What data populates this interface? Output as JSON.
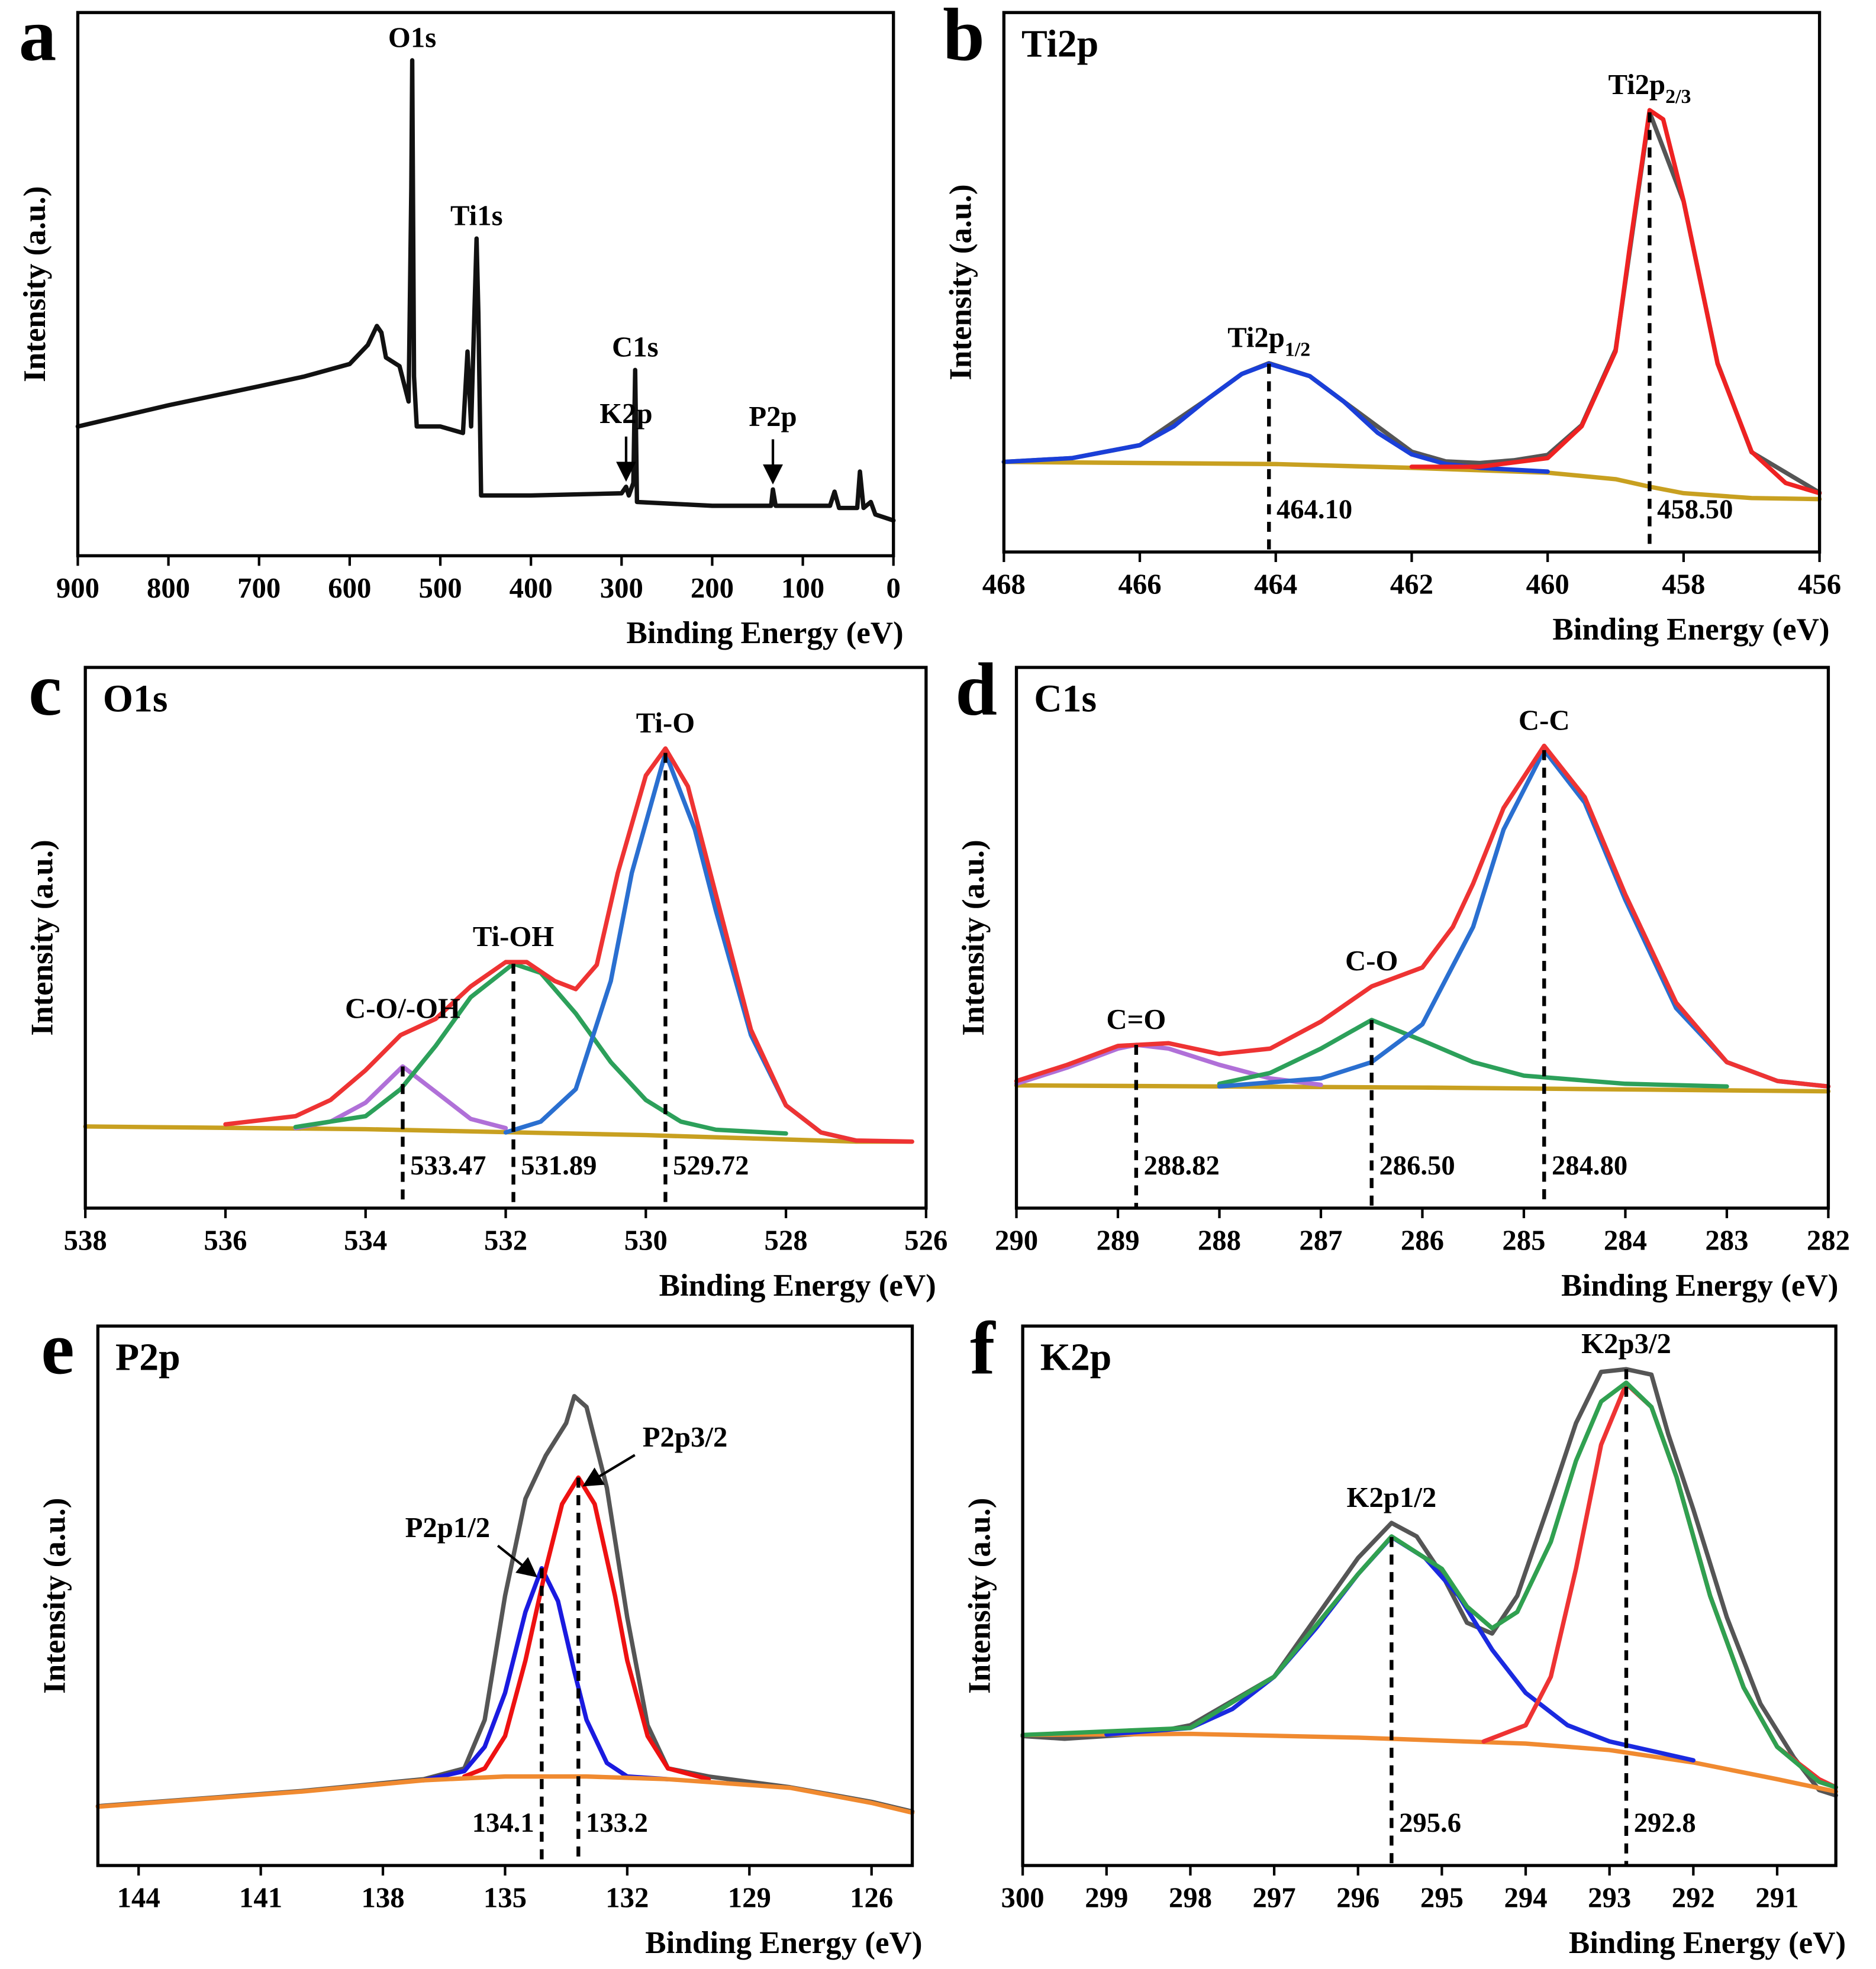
{
  "chart_data": [
    {
      "type": "line",
      "panel": "a",
      "x_label": "Binding Energy (eV)",
      "y_label": "Intensity (a.u.)",
      "xlim": [
        900,
        0
      ],
      "xticks": [
        900,
        800,
        700,
        600,
        500,
        400,
        300,
        200,
        100,
        0
      ],
      "ylim": [
        0,
        100
      ],
      "series": [
        {
          "color": "#111111",
          "x": [
            900,
            800,
            700,
            650,
            600,
            580,
            570,
            565,
            560,
            545,
            535,
            532,
            531,
            529,
            526,
            500,
            475,
            470,
            466,
            462,
            460,
            458,
            455,
            400,
            300,
            295,
            292,
            287,
            285,
            283,
            200,
            135,
            133,
            130,
            70,
            65,
            60,
            40,
            37,
            33,
            25,
            20,
            0
          ],
          "values": [
            23.8,
            27.7,
            31.2,
            33,
            35.3,
            38.8,
            42.3,
            41.1,
            36.5,
            34.9,
            28.4,
            67.7,
            91.2,
            33,
            23.8,
            23.8,
            22.6,
            37.6,
            23.8,
            46.9,
            58.4,
            44.6,
            11.1,
            11.1,
            11.5,
            12.7,
            11.1,
            13.4,
            34.2,
            9.9,
            9.2,
            9.2,
            12.2,
            9.2,
            9.2,
            11.8,
            8.8,
            8.8,
            15.5,
            8.8,
            9.9,
            7.6,
            6.5
          ]
        }
      ],
      "annotations": [
        {
          "text": "O1s",
          "x": 531
        },
        {
          "text": "Ti1s",
          "x": 460
        },
        {
          "text": "K2p",
          "x": 295,
          "arrow": true
        },
        {
          "text": "C1s",
          "x": 285
        },
        {
          "text": "P2p",
          "x": 133,
          "arrow": true
        }
      ]
    },
    {
      "type": "line",
      "panel": "b",
      "title": "Ti2p",
      "x_label": "Binding Energy (eV)",
      "y_label": "Intensity (a.u.)",
      "xlim": [
        468,
        456
      ],
      "xticks": [
        468,
        466,
        464,
        462,
        460,
        458,
        456
      ],
      "ylim": [
        0,
        100
      ],
      "series": [
        {
          "color": "#555555",
          "x": [
            468,
            467,
            466,
            465,
            464.5,
            464.1,
            463.5,
            463,
            462,
            461.5,
            461,
            460.5,
            460,
            459.5,
            459,
            458.5,
            458,
            457.5,
            457,
            456
          ],
          "values": [
            16.7,
            17.4,
            19.8,
            28.4,
            33,
            35,
            32.6,
            27.9,
            18.6,
            16.8,
            16.5,
            17,
            18,
            23.5,
            37.5,
            81.5,
            65,
            35,
            18.5,
            11
          ]
        },
        {
          "color": "#c8a020",
          "x": [
            468,
            464,
            462,
            460,
            459,
            458.5,
            458,
            457,
            456
          ],
          "values": [
            16.7,
            16.3,
            15.6,
            14.7,
            13.5,
            12.1,
            10.9,
            10,
            9.8
          ]
        },
        {
          "color": "#1a3fd8",
          "x": [
            468,
            467,
            466,
            465.5,
            465,
            464.5,
            464.1,
            463.5,
            463,
            462.5,
            462,
            461.5,
            461,
            460
          ],
          "values": [
            16.7,
            17.4,
            19.8,
            23.3,
            28.4,
            33,
            34.9,
            32.6,
            27.9,
            22.1,
            18.1,
            16.3,
            15.6,
            14.9
          ]
        },
        {
          "color": "#ee2222",
          "x": [
            462,
            461,
            460,
            459.5,
            459,
            458.8,
            458.5,
            458.3,
            458,
            457.5,
            457,
            456.5,
            456
          ],
          "values": [
            15.8,
            15.8,
            17.4,
            23.3,
            37.2,
            55.8,
            81.9,
            80.2,
            65.1,
            34.9,
            18.6,
            12.8,
            10.9
          ]
        }
      ],
      "peaks": [
        {
          "name": "Ti2p",
          "sub": "1/2",
          "value": 464.1,
          "value_label": "464.10"
        },
        {
          "name": "Ti2p",
          "sub": "2/3",
          "value": 458.5,
          "value_label": "458.50"
        }
      ]
    },
    {
      "type": "line",
      "panel": "c",
      "title": "O1s",
      "x_label": "Binding Energy (eV)",
      "y_label": "Intensity (a.u.)",
      "xlim": [
        538,
        526
      ],
      "xticks": [
        538,
        536,
        534,
        532,
        530,
        528,
        526
      ],
      "ylim": [
        0,
        100
      ],
      "series": [
        {
          "color": "#c8a020",
          "x": [
            538,
            534,
            530,
            527,
            526.2
          ],
          "values": [
            15.1,
            14.6,
            13.5,
            12.3,
            12.3
          ]
        },
        {
          "color": "#b070d8",
          "x": [
            535,
            534.5,
            534,
            533.47,
            533,
            532.5,
            532
          ],
          "values": [
            14.8,
            16,
            19.5,
            26.2,
            21.5,
            16.5,
            14.8
          ]
        },
        {
          "color": "#2ca05a",
          "x": [
            535,
            534,
            533.5,
            533,
            532.5,
            531.89,
            531.5,
            531,
            530.5,
            530,
            529.5,
            529,
            528
          ],
          "values": [
            15,
            17,
            22,
            30,
            39,
            45.2,
            43.5,
            36,
            27,
            20,
            16,
            14.5,
            13.8
          ]
        },
        {
          "color": "#2a6fd0",
          "x": [
            532,
            531.5,
            531,
            530.5,
            530.2,
            529.72,
            529.3,
            529,
            528.5,
            528,
            527.5,
            527
          ],
          "values": [
            14,
            16,
            22,
            42,
            62,
            84.2,
            70,
            55,
            32,
            19,
            14,
            12.5
          ]
        },
        {
          "color": "#ee3333",
          "x": [
            536,
            535,
            534.5,
            534,
            533.5,
            533,
            532.5,
            532,
            531.7,
            531.3,
            531,
            530.7,
            530.4,
            530,
            529.72,
            529.4,
            529,
            528.5,
            528,
            527.5,
            527,
            526.2
          ],
          "values": [
            15.5,
            17,
            20,
            25.5,
            32,
            35,
            41,
            45.5,
            45.5,
            42,
            40.5,
            45,
            62,
            80,
            85,
            78,
            58,
            33,
            19,
            14,
            12.5,
            12.3
          ]
        }
      ],
      "peaks": [
        {
          "name": "C-O/-OH",
          "value": 533.47
        },
        {
          "name": "Ti-OH",
          "value": 531.89
        },
        {
          "name": "Ti-O",
          "value": 529.72
        }
      ]
    },
    {
      "type": "line",
      "panel": "d",
      "title": "C1s",
      "x_label": "Binding Energy (eV)",
      "y_label": "Intensity (a.u.)",
      "xlim": [
        290,
        282
      ],
      "xticks": [
        290,
        289,
        288,
        287,
        286,
        285,
        284,
        283,
        282
      ],
      "ylim": [
        0,
        100
      ],
      "series": [
        {
          "color": "#c8a020",
          "x": [
            290,
            286,
            282
          ],
          "values": [
            22.7,
            22.3,
            21.6
          ]
        },
        {
          "color": "#b070d8",
          "x": [
            290,
            289.5,
            289,
            288.82,
            288.5,
            288,
            287.5,
            287
          ],
          "values": [
            23,
            26,
            29.5,
            30.2,
            29.5,
            26.5,
            24,
            22.8
          ]
        },
        {
          "color": "#2ca05a",
          "x": [
            288,
            287.5,
            287,
            286.5,
            286,
            285.5,
            285,
            284,
            283
          ],
          "values": [
            23,
            25,
            29.5,
            34.8,
            31,
            27,
            24.5,
            23,
            22.5
          ]
        },
        {
          "color": "#2a6fd0",
          "x": [
            288,
            287,
            286.5,
            286,
            285.5,
            285.2,
            284.8,
            284.4,
            284,
            283.5,
            283,
            282.5,
            282
          ],
          "values": [
            22.5,
            24,
            27,
            34,
            52,
            70,
            84.7,
            75,
            57,
            37,
            27,
            23.5,
            22.5
          ]
        },
        {
          "color": "#ee3333",
          "x": [
            290,
            289.5,
            289,
            288.5,
            288,
            287.5,
            287,
            286.5,
            286,
            285.7,
            285.5,
            285.2,
            284.8,
            284.4,
            284,
            283.5,
            283,
            282.5,
            282
          ],
          "values": [
            23.5,
            26.5,
            30,
            30.5,
            28.5,
            29.5,
            34.5,
            41,
            44.5,
            52,
            60,
            74,
            85.5,
            76,
            58,
            38,
            27,
            23.5,
            22.5
          ]
        }
      ],
      "peaks": [
        {
          "name": "C=O",
          "value": 288.82
        },
        {
          "name": "C-O",
          "value": 286.5,
          "value_label": "286.50"
        },
        {
          "name": "C-C",
          "value": 284.8,
          "value_label": "284.80"
        }
      ]
    },
    {
      "type": "line",
      "panel": "e",
      "title": "P2p",
      "x_label": "Binding Energy (eV)",
      "y_label": "Intensity (a.u.)",
      "xlim": [
        145,
        125
      ],
      "xticks": [
        144,
        141,
        138,
        135,
        132,
        129,
        126
      ],
      "ylim": [
        0,
        100
      ],
      "series": [
        {
          "color": "#555555",
          "x": [
            145,
            140,
            137,
            136,
            135.5,
            135,
            134.5,
            134,
            133.5,
            133.3,
            133,
            132.5,
            132,
            131.5,
            131,
            130,
            128,
            126,
            125
          ],
          "values": [
            11,
            13.8,
            16,
            18,
            27,
            50,
            68,
            76,
            82,
            87,
            85,
            70,
            46,
            26,
            18,
            16.5,
            14.5,
            11.8,
            10
          ]
        },
        {
          "color": "#1a1ae0",
          "x": [
            137,
            136,
            135.5,
            135,
            134.5,
            134.1,
            133.7,
            133.3,
            133,
            132.5,
            132,
            131
          ],
          "values": [
            15.8,
            17.5,
            22,
            32,
            47,
            55.1,
            49,
            36,
            27,
            19,
            16.5,
            16
          ]
        },
        {
          "color": "#ee1111",
          "x": [
            136,
            135.5,
            135,
            134.5,
            134,
            133.6,
            133.2,
            132.8,
            132.3,
            132,
            131.5,
            131,
            130
          ],
          "values": [
            16.5,
            18,
            24,
            38,
            55,
            67,
            71.9,
            67,
            50,
            38,
            24,
            18,
            16
          ]
        },
        {
          "color": "#f08a30",
          "x": [
            145,
            140,
            137,
            135,
            133,
            131,
            128,
            126,
            125
          ],
          "values": [
            10.9,
            13.7,
            15.8,
            16.5,
            16.5,
            16,
            14.4,
            11.6,
            9.8
          ]
        }
      ],
      "peaks": [
        {
          "name": "P2p1/2",
          "value": 134.1,
          "arrow": true
        },
        {
          "name": "P2p3/2",
          "value": 133.2,
          "arrow": true
        }
      ]
    },
    {
      "type": "line",
      "panel": "f",
      "title": "K2p",
      "x_label": "Binding Energy (eV)",
      "y_label": "Intensity (a.u.)",
      "xlim": [
        300,
        290.3
      ],
      "xticks": [
        300,
        299,
        298,
        297,
        296,
        295,
        294,
        293,
        292,
        291
      ],
      "ylim": [
        0,
        100
      ],
      "series": [
        {
          "color": "#555555",
          "x": [
            300,
            299.5,
            298.5,
            298,
            297,
            296,
            295.6,
            295.3,
            295,
            294.7,
            294.4,
            294.1,
            293.7,
            293.4,
            293.1,
            292.8,
            292.5,
            292.3,
            292,
            291.6,
            291.2,
            290.8,
            290.5,
            290.3
          ],
          "values": [
            24,
            23.5,
            24.5,
            26,
            35,
            57,
            63.5,
            61,
            54,
            45,
            43,
            50,
            68,
            82,
            91.5,
            92,
            91,
            80,
            66,
            46,
            30,
            20,
            14,
            13
          ]
        },
        {
          "color": "#f08a30",
          "x": [
            300,
            298,
            296,
            294,
            293,
            292,
            291,
            290.3
          ],
          "values": [
            24.2,
            24.4,
            23.7,
            22.6,
            21.4,
            19.1,
            16,
            13.7
          ]
        },
        {
          "color": "#1a2ae0",
          "x": [
            299,
            298,
            297.5,
            297,
            296.5,
            296,
            295.6,
            295.2,
            294.8,
            294.4,
            294,
            293.5,
            293,
            292
          ],
          "values": [
            24.3,
            25.5,
            29,
            35,
            44,
            54,
            60.9,
            57,
            50,
            40,
            32,
            26,
            23,
            19.5
          ]
        },
        {
          "color": "#ee3333",
          "x": [
            294.5,
            294,
            293.7,
            293.4,
            293.1,
            292.8,
            292.5,
            292.2,
            291.8,
            291.4,
            291,
            290.5,
            290.3
          ],
          "values": [
            23,
            26,
            35,
            55,
            78,
            89.3,
            85,
            72,
            50,
            33,
            22,
            16,
            14.5
          ]
        },
        {
          "color": "#30a050",
          "x": [
            300,
            298,
            297,
            296,
            295.6,
            295,
            294.7,
            294.4,
            294.1,
            293.7,
            293.4,
            293.1,
            292.8,
            292.5,
            292.2,
            291.8,
            291.4,
            291,
            290.5,
            290.3
          ],
          "values": [
            24.2,
            25.5,
            35,
            54,
            61,
            55,
            48,
            44,
            47,
            60,
            75,
            86,
            89.5,
            85,
            72,
            50,
            33,
            22,
            15.5,
            14.5
          ]
        }
      ],
      "peaks": [
        {
          "name": "K2p1/2",
          "value": 295.6
        },
        {
          "name": "K2p3/2",
          "value": 292.8
        }
      ]
    }
  ]
}
